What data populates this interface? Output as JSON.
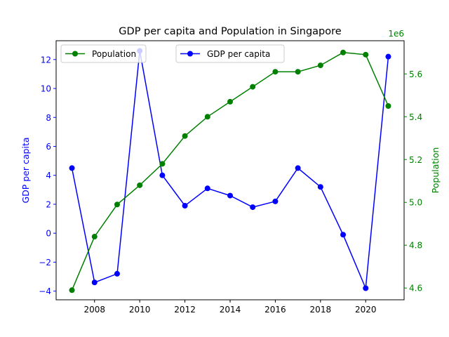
{
  "chart_data": {
    "type": "line",
    "title": "GDP per capita and Population in Singapore",
    "xlabel": "",
    "x": [
      2007,
      2008,
      2009,
      2010,
      2011,
      2012,
      2013,
      2014,
      2015,
      2016,
      2017,
      2018,
      2019,
      2020,
      2021
    ],
    "x_ticks": [
      "2008",
      "2010",
      "2012",
      "2014",
      "2016",
      "2018",
      "2020"
    ],
    "x_tick_values": [
      2008,
      2010,
      2012,
      2014,
      2016,
      2018,
      2020
    ],
    "xlim": [
      2006.3,
      2021.7
    ],
    "left_axis": {
      "label": "GDP per capita",
      "color": "#0000ff",
      "ylim": [
        -4.6,
        13.3
      ],
      "ticks": [
        "−4",
        "−2",
        "0",
        "2",
        "4",
        "6",
        "8",
        "10",
        "12"
      ],
      "tick_values": [
        -4,
        -2,
        0,
        2,
        4,
        6,
        8,
        10,
        12
      ]
    },
    "right_axis": {
      "label": "Population",
      "color": "#008000",
      "offset_text": "1e6",
      "ylim": [
        4.545,
        5.755
      ],
      "ticks": [
        "4.6",
        "4.8",
        "5.0",
        "5.2",
        "5.4",
        "5.6"
      ],
      "tick_values": [
        4.6,
        4.8,
        5.0,
        5.2,
        5.4,
        5.6
      ]
    },
    "series": [
      {
        "name": "GDP per capita",
        "axis": "left",
        "color": "#0000ff",
        "values": [
          4.5,
          -3.4,
          -2.8,
          12.6,
          4.0,
          1.9,
          3.1,
          2.6,
          1.8,
          2.2,
          4.5,
          3.2,
          -0.1,
          -3.8,
          12.2
        ]
      },
      {
        "name": "Population",
        "axis": "right",
        "color": "#008000",
        "values": [
          4.59,
          4.84,
          4.99,
          5.08,
          5.18,
          5.31,
          5.4,
          5.47,
          5.54,
          5.61,
          5.61,
          5.64,
          5.7,
          5.69,
          5.45
        ]
      }
    ],
    "legends": [
      {
        "series": "Population",
        "placement": "upper-left"
      },
      {
        "series": "GDP per capita",
        "placement": "upper-center"
      }
    ]
  }
}
